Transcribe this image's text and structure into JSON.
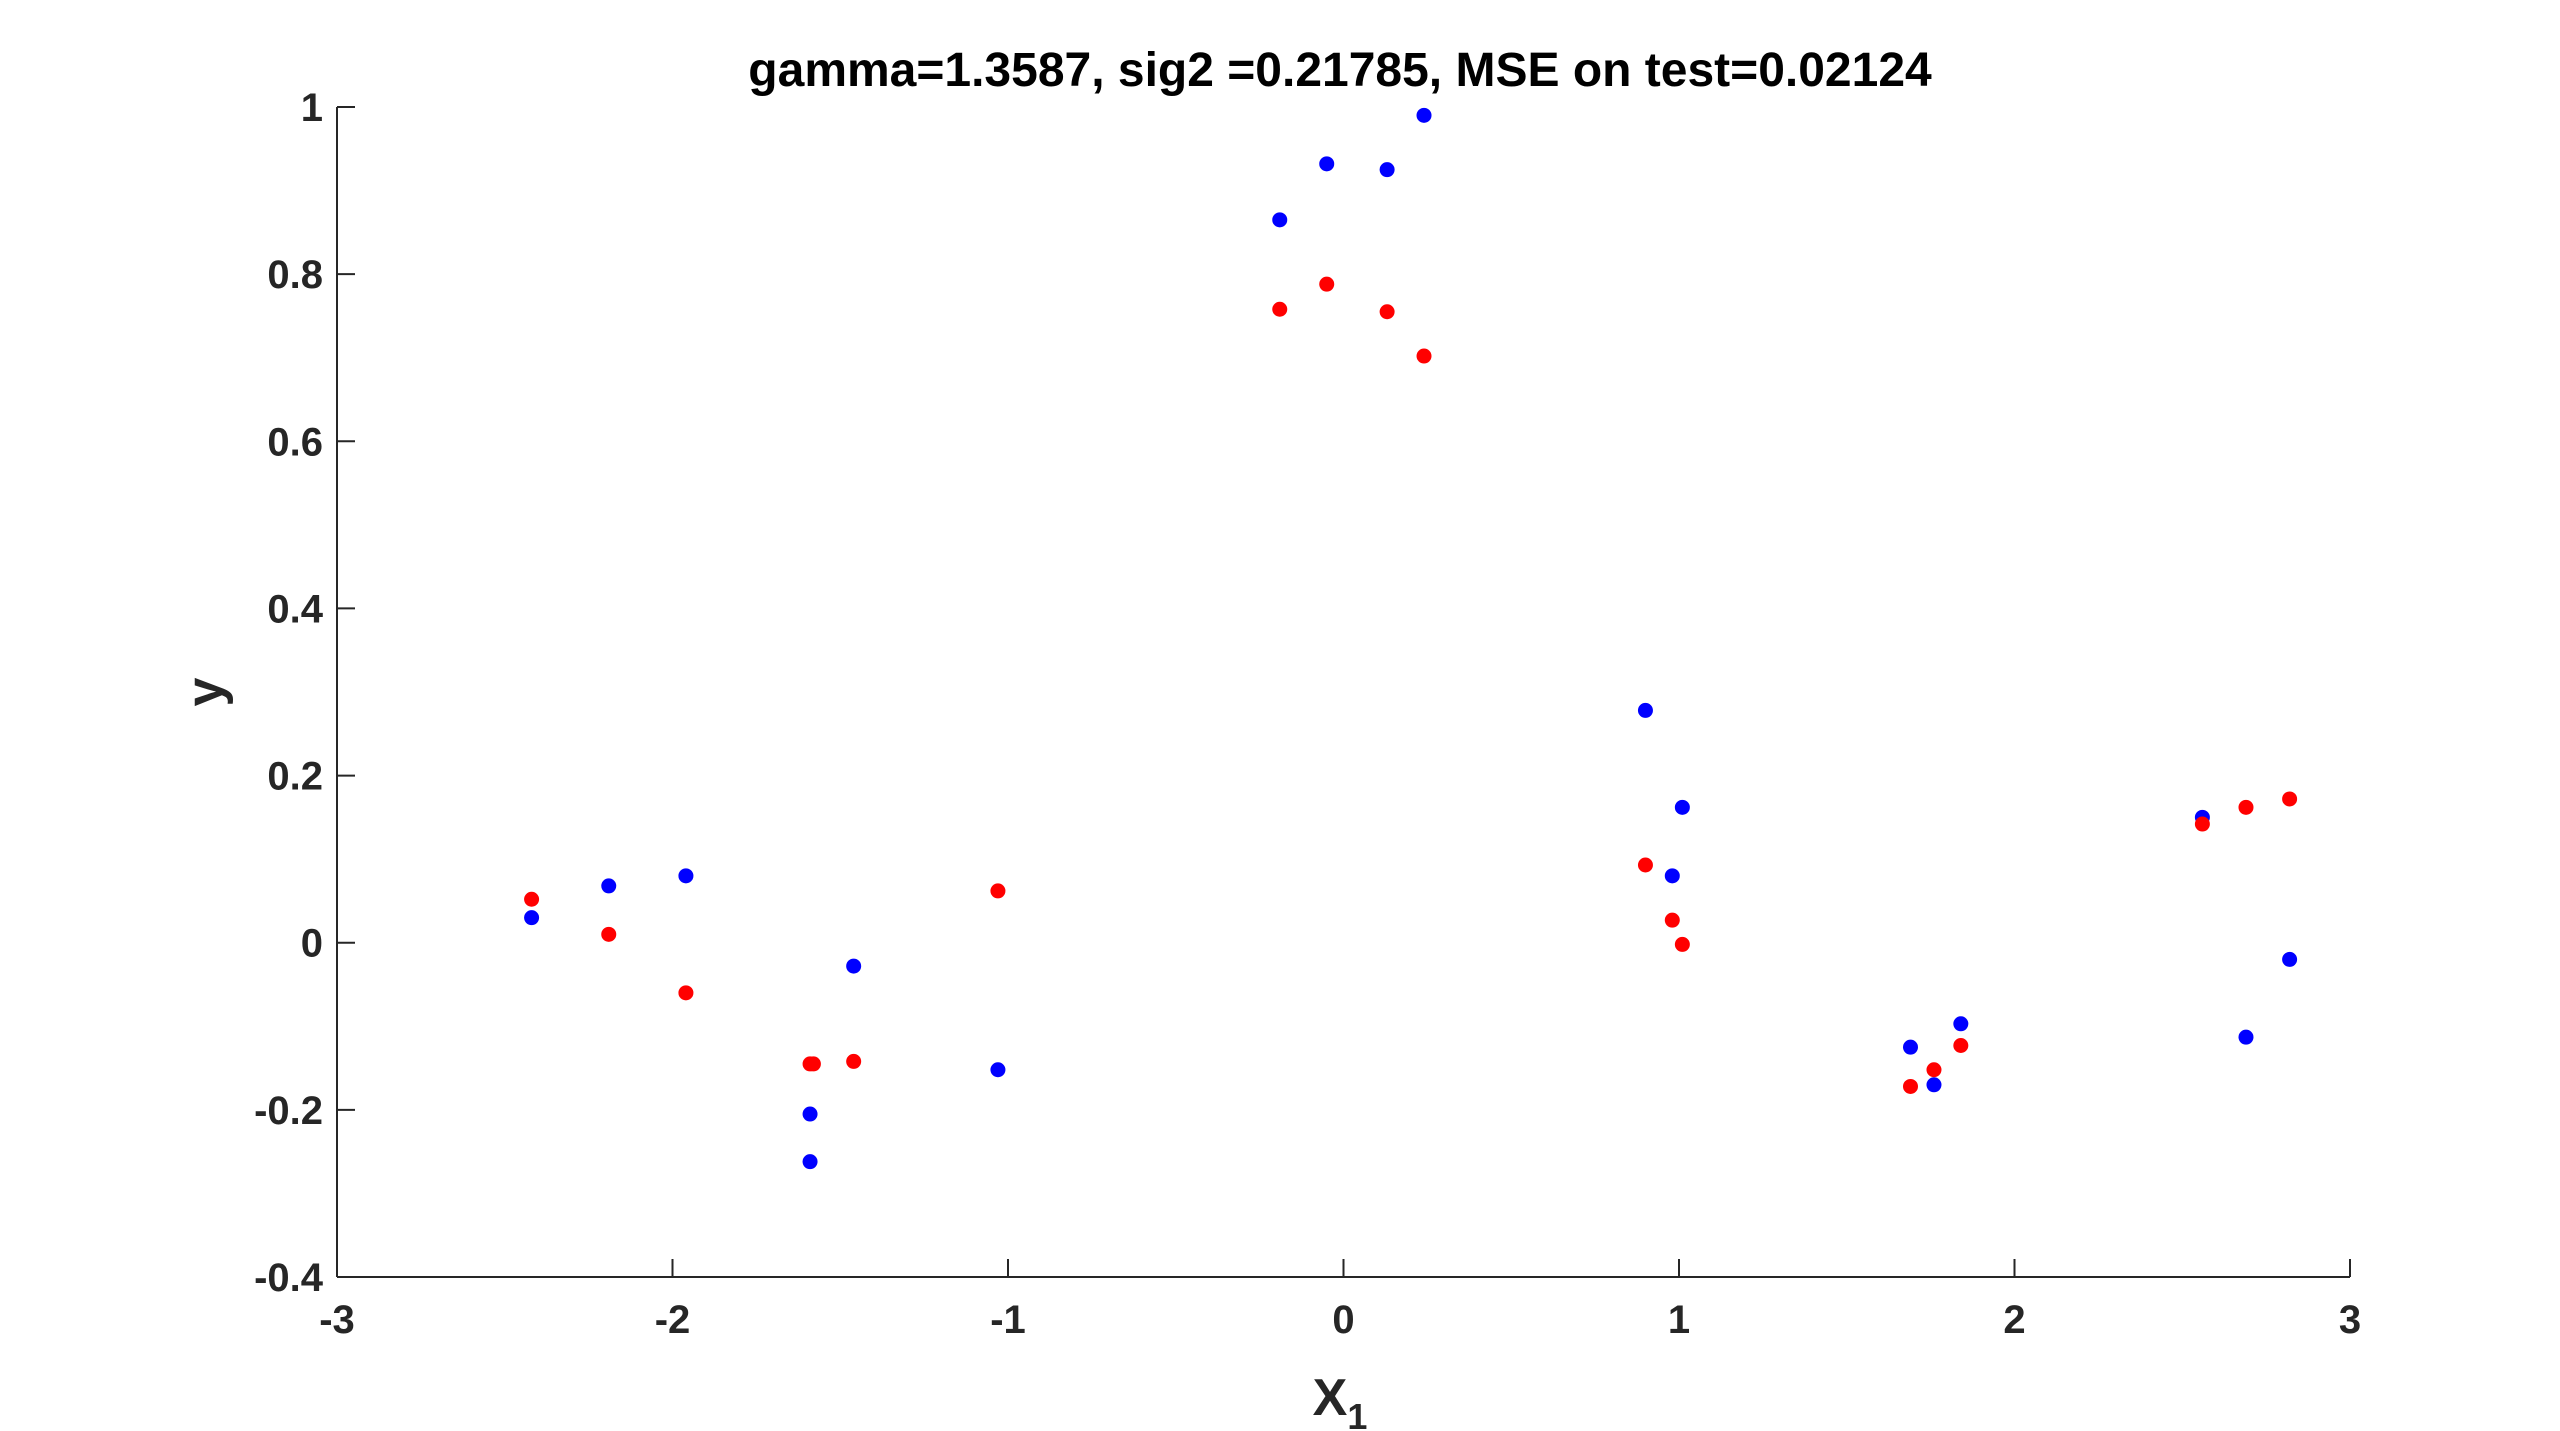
{
  "chart_data": {
    "type": "scatter",
    "title": "gamma=1.3587,  sig2 =0.21785,  MSE on test=0.02124",
    "xlabel": "X",
    "xlabel_sub": "1",
    "ylabel": "y",
    "xlim": [
      -3,
      3
    ],
    "ylim": [
      -0.4,
      1
    ],
    "xticks": [
      -3,
      -2,
      -1,
      0,
      1,
      2,
      3
    ],
    "xtick_labels": [
      "-3",
      "-2",
      "-1",
      "0",
      "1",
      "2",
      "3"
    ],
    "yticks": [
      -0.4,
      -0.2,
      0,
      0.2,
      0.4,
      0.6,
      0.8,
      1
    ],
    "ytick_labels": [
      "-0.4",
      "-0.2",
      "0",
      "0.2",
      "0.4",
      "0.6",
      "0.8",
      "1"
    ],
    "grid": false,
    "series": [
      {
        "color": "#0000ff",
        "x": [
          -2.42,
          -2.19,
          -1.96,
          -1.59,
          -1.59,
          -1.46,
          -1.03,
          -0.19,
          -0.05,
          0.13,
          0.24,
          0.9,
          0.98,
          1.01,
          1.69,
          1.76,
          1.84,
          2.56,
          2.69,
          2.82
        ],
        "y": [
          0.03,
          0.068,
          0.08,
          -0.205,
          -0.262,
          -0.028,
          -0.152,
          0.865,
          0.932,
          0.925,
          0.99,
          0.278,
          0.08,
          0.162,
          -0.125,
          -0.17,
          -0.097,
          0.15,
          -0.113,
          -0.02
        ]
      },
      {
        "color": "#ff0000",
        "x": [
          -2.42,
          -2.19,
          -1.96,
          -1.59,
          -1.58,
          -1.46,
          -1.03,
          -0.19,
          -0.05,
          0.13,
          0.24,
          0.9,
          0.98,
          1.01,
          1.69,
          1.76,
          1.84,
          2.56,
          2.69,
          2.82
        ],
        "y": [
          0.052,
          0.01,
          -0.06,
          -0.145,
          -0.145,
          -0.142,
          0.062,
          0.758,
          0.788,
          0.755,
          0.702,
          0.093,
          0.027,
          -0.002,
          -0.172,
          -0.152,
          -0.123,
          0.142,
          0.162,
          0.172
        ]
      }
    ]
  }
}
